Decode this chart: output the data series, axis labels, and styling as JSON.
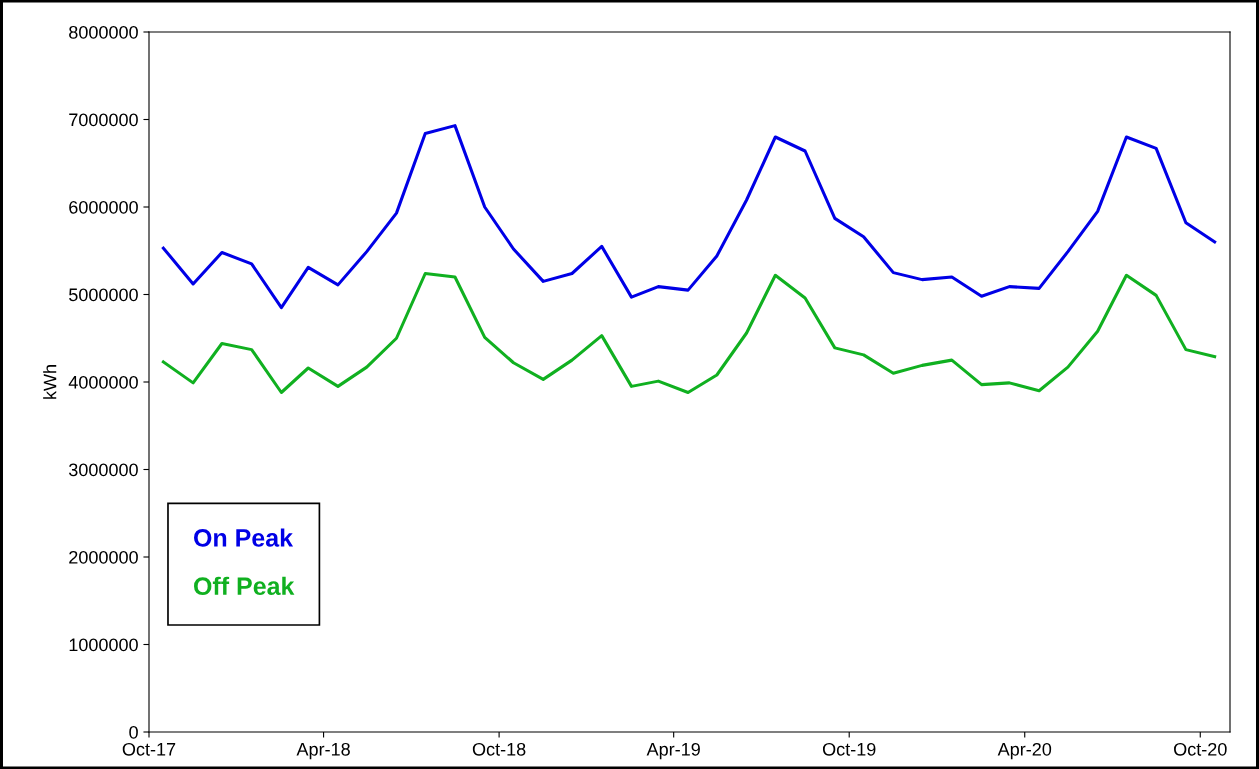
{
  "chart_data": {
    "type": "line",
    "ylabel": "kWh",
    "x": [
      "2017-10-16",
      "2017-11-16",
      "2017-12-16",
      "2018-01-16",
      "2018-02-16",
      "2018-03-16",
      "2018-04-16",
      "2018-05-16",
      "2018-06-16",
      "2018-07-16",
      "2018-08-16",
      "2018-09-16",
      "2018-10-16",
      "2018-11-16",
      "2018-12-16",
      "2019-01-16",
      "2019-02-16",
      "2019-03-16",
      "2019-04-16",
      "2019-05-16",
      "2019-06-16",
      "2019-07-16",
      "2019-08-16",
      "2019-09-16",
      "2019-10-16",
      "2019-11-16",
      "2019-12-16",
      "2020-01-16",
      "2020-02-16",
      "2020-03-16",
      "2020-04-16",
      "2020-05-16",
      "2020-06-16",
      "2020-07-16",
      "2020-08-16",
      "2020-09-16",
      "2020-10-16"
    ],
    "series": [
      {
        "name": "On Peak",
        "color": "#0000e6",
        "values": [
          5530000,
          5120000,
          5480000,
          5350000,
          4850000,
          5310000,
          5110000,
          5490000,
          5930000,
          6840000,
          6930000,
          6000000,
          5520000,
          5150000,
          5240000,
          5550000,
          4970000,
          5090000,
          5050000,
          5440000,
          6080000,
          6800000,
          6640000,
          5870000,
          5660000,
          5250000,
          5170000,
          5200000,
          4980000,
          5090000,
          5070000,
          5490000,
          5950000,
          6800000,
          6670000,
          5820000,
          5600000
        ]
      },
      {
        "name": "Off Peak",
        "color": "#10b020",
        "values": [
          4230000,
          3990000,
          4440000,
          4370000,
          3880000,
          4160000,
          3950000,
          4170000,
          4500000,
          5240000,
          5200000,
          4510000,
          4220000,
          4030000,
          4250000,
          4530000,
          3950000,
          4010000,
          3880000,
          4080000,
          4560000,
          5220000,
          4960000,
          4390000,
          4310000,
          4100000,
          4190000,
          4250000,
          3970000,
          3990000,
          3900000,
          4170000,
          4580000,
          5220000,
          4990000,
          4370000,
          4290000
        ]
      }
    ],
    "xlim": [
      "2017-10-01",
      "2020-11-01"
    ],
    "xticks": [
      {
        "value": "2017-10-01",
        "label": "Oct-17"
      },
      {
        "value": "2018-04-01",
        "label": "Apr-18"
      },
      {
        "value": "2018-10-01",
        "label": "Oct-18"
      },
      {
        "value": "2019-04-01",
        "label": "Apr-19"
      },
      {
        "value": "2019-10-01",
        "label": "Oct-19"
      },
      {
        "value": "2020-04-01",
        "label": "Apr-20"
      },
      {
        "value": "2020-10-01",
        "label": "Oct-20"
      }
    ],
    "ylim": [
      0,
      8000000
    ],
    "yticks": [
      0,
      1000000,
      2000000,
      3000000,
      4000000,
      5000000,
      6000000,
      7000000,
      8000000
    ],
    "grid": false,
    "legend": "bottom left",
    "marker": "none",
    "line_style": "solid"
  }
}
